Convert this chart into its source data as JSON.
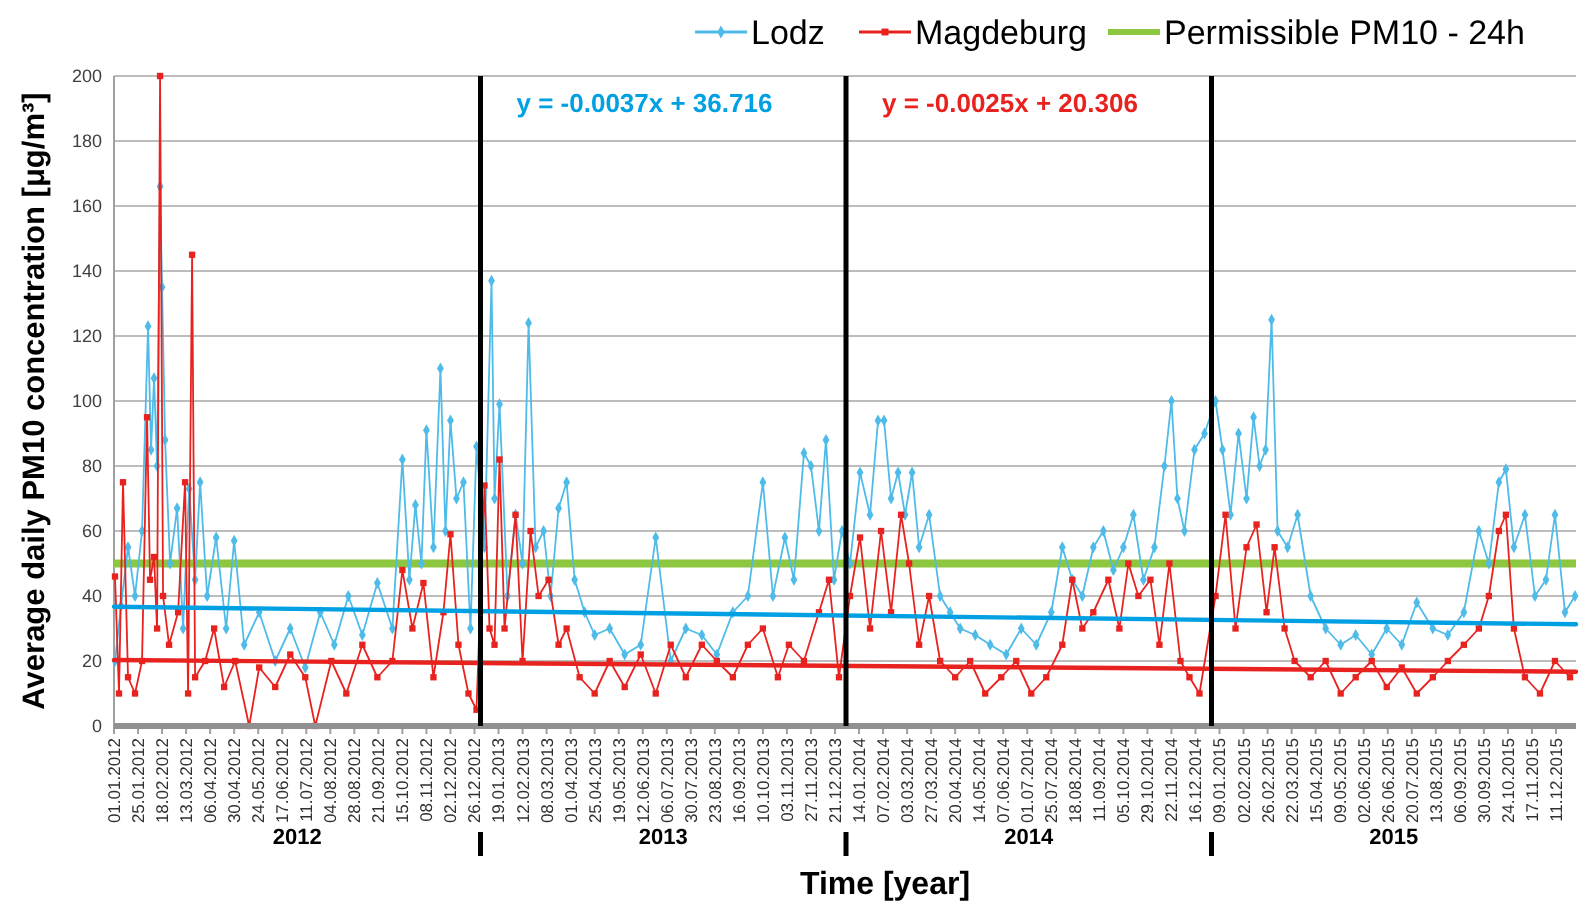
{
  "chart_data": {
    "type": "line",
    "xlabel": "Time [year]",
    "ylabel": "Average daily PM10 concentration [μg/m³]",
    "xlim": [
      "2012-01-01",
      "2015-12-31"
    ],
    "ylim": [
      0,
      200
    ],
    "yticks": [
      0,
      20,
      40,
      60,
      80,
      100,
      120,
      140,
      160,
      180,
      200
    ],
    "xticks": [
      {
        "value": "2012-01-01",
        "label": "01.01.2012"
      },
      {
        "value": "2012-01-25",
        "label": "25.01.2012"
      },
      {
        "value": "2012-02-18",
        "label": "18.02.2012"
      },
      {
        "value": "2012-03-13",
        "label": "13.03.2012"
      },
      {
        "value": "2012-04-06",
        "label": "06.04.2012"
      },
      {
        "value": "2012-04-30",
        "label": "30.04.2012"
      },
      {
        "value": "2012-05-24",
        "label": "24.05.2012"
      },
      {
        "value": "2012-06-17",
        "label": "17.06.2012"
      },
      {
        "value": "2012-07-11",
        "label": "11.07.2012"
      },
      {
        "value": "2012-08-04",
        "label": "04.08.2012"
      },
      {
        "value": "2012-08-28",
        "label": "28.08.2012"
      },
      {
        "value": "2012-09-21",
        "label": "21.09.2012"
      },
      {
        "value": "2012-10-15",
        "label": "15.10.2012"
      },
      {
        "value": "2012-11-08",
        "label": "08.11.2012"
      },
      {
        "value": "2012-12-02",
        "label": "02.12.2012"
      },
      {
        "value": "2012-12-26",
        "label": "26.12.2012"
      },
      {
        "value": "2013-01-19",
        "label": "19.01.2013"
      },
      {
        "value": "2013-02-12",
        "label": "12.02.2013"
      },
      {
        "value": "2013-03-08",
        "label": "08.03.2013"
      },
      {
        "value": "2013-04-01",
        "label": "01.04.2013"
      },
      {
        "value": "2013-04-25",
        "label": "25.04.2013"
      },
      {
        "value": "2013-05-19",
        "label": "19.05.2013"
      },
      {
        "value": "2013-06-12",
        "label": "12.06.2013"
      },
      {
        "value": "2013-07-06",
        "label": "06.07.2013"
      },
      {
        "value": "2013-07-30",
        "label": "30.07.2013"
      },
      {
        "value": "2013-08-23",
        "label": "23.08.2013"
      },
      {
        "value": "2013-09-16",
        "label": "16.09.2013"
      },
      {
        "value": "2013-10-10",
        "label": "10.10.2013"
      },
      {
        "value": "2013-11-03",
        "label": "03.11.2013"
      },
      {
        "value": "2013-11-27",
        "label": "27.11.2013"
      },
      {
        "value": "2013-12-21",
        "label": "21.12.2013"
      },
      {
        "value": "2014-01-14",
        "label": "14.01.2014"
      },
      {
        "value": "2014-02-07",
        "label": "07.02.2014"
      },
      {
        "value": "2014-03-03",
        "label": "03.03.2014"
      },
      {
        "value": "2014-03-27",
        "label": "27.03.2014"
      },
      {
        "value": "2014-04-20",
        "label": "20.04.2014"
      },
      {
        "value": "2014-05-14",
        "label": "14.05.2014"
      },
      {
        "value": "2014-06-07",
        "label": "07.06.2014"
      },
      {
        "value": "2014-07-01",
        "label": "01.07.2014"
      },
      {
        "value": "2014-07-25",
        "label": "25.07.2014"
      },
      {
        "value": "2014-08-18",
        "label": "18.08.2014"
      },
      {
        "value": "2014-09-11",
        "label": "11.09.2014"
      },
      {
        "value": "2014-10-05",
        "label": "05.10.2014"
      },
      {
        "value": "2014-10-29",
        "label": "29.10.2014"
      },
      {
        "value": "2014-11-22",
        "label": "22.11.2014"
      },
      {
        "value": "2014-12-16",
        "label": "16.12.2014"
      },
      {
        "value": "2015-01-09",
        "label": "09.01.2015"
      },
      {
        "value": "2015-02-02",
        "label": "02.02.2015"
      },
      {
        "value": "2015-02-26",
        "label": "26.02.2015"
      },
      {
        "value": "2015-03-22",
        "label": "22.03.2015"
      },
      {
        "value": "2015-04-15",
        "label": "15.04.2015"
      },
      {
        "value": "2015-05-09",
        "label": "09.05.2015"
      },
      {
        "value": "2015-06-02",
        "label": "02.06.2015"
      },
      {
        "value": "2015-06-26",
        "label": "26.06.2015"
      },
      {
        "value": "2015-07-20",
        "label": "20.07.2015"
      },
      {
        "value": "2015-08-13",
        "label": "13.08.2015"
      },
      {
        "value": "2015-09-06",
        "label": "06.09.2015"
      },
      {
        "value": "2015-09-30",
        "label": "30.09.2015"
      },
      {
        "value": "2015-10-24",
        "label": "24.10.2015"
      },
      {
        "value": "2015-11-17",
        "label": "17.11.2015"
      },
      {
        "value": "2015-12-11",
        "label": "11.12.2015"
      }
    ],
    "grid": "y",
    "legend": "top",
    "series": [
      {
        "name": "Lodz",
        "color": "#4fbbe9",
        "marker": "diamond",
        "x": [
          "2012-01-02",
          "2012-01-08",
          "2012-01-15",
          "2012-01-22",
          "2012-01-29",
          "2012-02-04",
          "2012-02-07",
          "2012-02-10",
          "2012-02-13",
          "2012-02-16",
          "2012-02-18",
          "2012-02-21",
          "2012-02-26",
          "2012-03-04",
          "2012-03-10",
          "2012-03-16",
          "2012-03-22",
          "2012-03-27",
          "2012-04-03",
          "2012-04-12",
          "2012-04-22",
          "2012-04-30",
          "2012-05-10",
          "2012-05-25",
          "2012-06-10",
          "2012-06-25",
          "2012-07-10",
          "2012-07-25",
          "2012-08-08",
          "2012-08-22",
          "2012-09-05",
          "2012-09-20",
          "2012-10-05",
          "2012-10-15",
          "2012-10-22",
          "2012-10-28",
          "2012-11-03",
          "2012-11-08",
          "2012-11-15",
          "2012-11-22",
          "2012-11-27",
          "2012-12-02",
          "2012-12-08",
          "2012-12-15",
          "2012-12-22",
          "2012-12-28",
          "2013-01-05",
          "2013-01-12",
          "2013-01-15",
          "2013-01-20",
          "2013-01-28",
          "2013-02-05",
          "2013-02-12",
          "2013-02-18",
          "2013-02-25",
          "2013-03-05",
          "2013-03-12",
          "2013-03-20",
          "2013-03-28",
          "2013-04-05",
          "2013-04-15",
          "2013-04-25",
          "2013-05-10",
          "2013-05-25",
          "2013-06-10",
          "2013-06-25",
          "2013-07-10",
          "2013-07-25",
          "2013-08-10",
          "2013-08-25",
          "2013-09-10",
          "2013-09-25",
          "2013-10-10",
          "2013-10-20",
          "2013-11-01",
          "2013-11-10",
          "2013-11-20",
          "2013-11-27",
          "2013-12-05",
          "2013-12-12",
          "2013-12-20",
          "2013-12-28",
          "2014-01-05",
          "2014-01-15",
          "2014-01-25",
          "2014-02-02",
          "2014-02-08",
          "2014-02-15",
          "2014-02-22",
          "2014-03-01",
          "2014-03-08",
          "2014-03-15",
          "2014-03-25",
          "2014-04-05",
          "2014-04-15",
          "2014-04-25",
          "2014-05-10",
          "2014-05-25",
          "2014-06-10",
          "2014-06-25",
          "2014-07-10",
          "2014-07-25",
          "2014-08-05",
          "2014-08-15",
          "2014-08-25",
          "2014-09-05",
          "2014-09-15",
          "2014-09-25",
          "2014-10-05",
          "2014-10-15",
          "2014-10-25",
          "2014-11-05",
          "2014-11-15",
          "2014-11-22",
          "2014-11-28",
          "2014-12-05",
          "2014-12-15",
          "2014-12-25",
          "2015-01-05",
          "2015-01-12",
          "2015-01-20",
          "2015-01-28",
          "2015-02-05",
          "2015-02-12",
          "2015-02-18",
          "2015-02-24",
          "2015-03-02",
          "2015-03-08",
          "2015-03-18",
          "2015-03-28",
          "2015-04-10",
          "2015-04-25",
          "2015-05-10",
          "2015-05-25",
          "2015-06-10",
          "2015-06-25",
          "2015-07-10",
          "2015-07-25",
          "2015-08-10",
          "2015-08-25",
          "2015-09-10",
          "2015-09-25",
          "2015-10-05",
          "2015-10-15",
          "2015-10-22",
          "2015-10-30",
          "2015-11-10",
          "2015-11-20",
          "2015-12-01",
          "2015-12-10",
          "2015-12-20",
          "2015-12-30"
        ],
        "values": [
          20,
          37,
          55,
          40,
          60,
          123,
          85,
          107,
          80,
          166,
          135,
          88,
          50,
          67,
          30,
          73,
          45,
          75,
          40,
          58,
          30,
          57,
          25,
          35,
          20,
          30,
          18,
          35,
          25,
          40,
          28,
          44,
          30,
          82,
          45,
          68,
          50,
          91,
          55,
          110,
          60,
          94,
          70,
          75,
          30,
          86,
          55,
          137,
          70,
          99,
          40,
          65,
          50,
          124,
          55,
          60,
          40,
          67,
          75,
          45,
          35,
          28,
          30,
          22,
          25,
          58,
          20,
          30,
          28,
          22,
          35,
          40,
          75,
          40,
          58,
          45,
          84,
          80,
          60,
          88,
          45,
          60,
          50,
          78,
          65,
          94,
          94,
          70,
          78,
          65,
          78,
          55,
          65,
          40,
          35,
          30,
          28,
          25,
          22,
          30,
          25,
          35,
          55,
          45,
          40,
          55,
          60,
          48,
          55,
          65,
          45,
          55,
          80,
          100,
          70,
          60,
          85,
          90,
          100,
          85,
          65,
          90,
          70,
          95,
          80,
          85,
          125,
          60,
          55,
          65,
          40,
          30,
          25,
          28,
          22,
          30,
          25,
          38,
          30,
          28,
          35,
          60,
          50,
          75,
          79,
          55,
          65,
          40,
          45,
          65,
          35,
          40
        ]
      },
      {
        "name": "Magdeburg",
        "color": "#e8231f",
        "marker": "square",
        "x": [
          "2012-01-02",
          "2012-01-06",
          "2012-01-10",
          "2012-01-15",
          "2012-01-22",
          "2012-01-29",
          "2012-02-03",
          "2012-02-06",
          "2012-02-10",
          "2012-02-13",
          "2012-02-16",
          "2012-02-19",
          "2012-02-25",
          "2012-03-05",
          "2012-03-12",
          "2012-03-15",
          "2012-03-19",
          "2012-03-22",
          "2012-04-01",
          "2012-04-10",
          "2012-04-20",
          "2012-05-01",
          "2012-05-15",
          "2012-05-25",
          "2012-06-10",
          "2012-06-25",
          "2012-07-10",
          "2012-07-20",
          "2012-08-05",
          "2012-08-20",
          "2012-09-05",
          "2012-09-20",
          "2012-10-05",
          "2012-10-15",
          "2012-10-25",
          "2012-11-05",
          "2012-11-15",
          "2012-11-25",
          "2012-12-02",
          "2012-12-10",
          "2012-12-20",
          "2012-12-28",
          "2013-01-05",
          "2013-01-10",
          "2013-01-15",
          "2013-01-20",
          "2013-01-25",
          "2013-02-05",
          "2013-02-12",
          "2013-02-20",
          "2013-02-28",
          "2013-03-10",
          "2013-03-20",
          "2013-03-28",
          "2013-04-10",
          "2013-04-25",
          "2013-05-10",
          "2013-05-25",
          "2013-06-10",
          "2013-06-25",
          "2013-07-10",
          "2013-07-25",
          "2013-08-10",
          "2013-08-25",
          "2013-09-10",
          "2013-09-25",
          "2013-10-10",
          "2013-10-25",
          "2013-11-05",
          "2013-11-20",
          "2013-12-05",
          "2013-12-15",
          "2013-12-25",
          "2014-01-05",
          "2014-01-15",
          "2014-01-25",
          "2014-02-05",
          "2014-02-15",
          "2014-02-25",
          "2014-03-05",
          "2014-03-15",
          "2014-03-25",
          "2014-04-05",
          "2014-04-20",
          "2014-05-05",
          "2014-05-20",
          "2014-06-05",
          "2014-06-20",
          "2014-07-05",
          "2014-07-20",
          "2014-08-05",
          "2014-08-15",
          "2014-08-25",
          "2014-09-05",
          "2014-09-20",
          "2014-10-01",
          "2014-10-10",
          "2014-10-20",
          "2014-11-01",
          "2014-11-10",
          "2014-11-20",
          "2014-12-01",
          "2014-12-10",
          "2014-12-20",
          "2015-01-05",
          "2015-01-15",
          "2015-01-25",
          "2015-02-05",
          "2015-02-15",
          "2015-02-25",
          "2015-03-05",
          "2015-03-15",
          "2015-03-25",
          "2015-04-10",
          "2015-04-25",
          "2015-05-10",
          "2015-05-25",
          "2015-06-10",
          "2015-06-25",
          "2015-07-10",
          "2015-07-25",
          "2015-08-10",
          "2015-08-25",
          "2015-09-10",
          "2015-09-25",
          "2015-10-05",
          "2015-10-15",
          "2015-10-22",
          "2015-10-30",
          "2015-11-10",
          "2015-11-25",
          "2015-12-10",
          "2015-12-25"
        ],
        "values": [
          46,
          10,
          75,
          15,
          10,
          20,
          95,
          45,
          52,
          30,
          200,
          40,
          25,
          35,
          75,
          10,
          145,
          15,
          20,
          30,
          12,
          20,
          0,
          18,
          12,
          22,
          15,
          0,
          20,
          10,
          25,
          15,
          20,
          48,
          30,
          44,
          15,
          35,
          59,
          25,
          10,
          5,
          74,
          30,
          25,
          82,
          30,
          65,
          20,
          60,
          40,
          45,
          25,
          30,
          15,
          10,
          20,
          12,
          22,
          10,
          25,
          15,
          25,
          20,
          15,
          25,
          30,
          15,
          25,
          20,
          35,
          45,
          15,
          40,
          58,
          30,
          60,
          35,
          65,
          50,
          25,
          40,
          20,
          15,
          20,
          10,
          15,
          20,
          10,
          15,
          25,
          45,
          30,
          35,
          45,
          30,
          50,
          40,
          45,
          25,
          50,
          20,
          15,
          10,
          40,
          65,
          30,
          55,
          62,
          35,
          55,
          30,
          20,
          15,
          20,
          10,
          15,
          20,
          12,
          18,
          10,
          15,
          20,
          25,
          30,
          40,
          60,
          65,
          30,
          15,
          10,
          20,
          15
        ]
      },
      {
        "name": "y = -0.0037x + 36.716",
        "color": "#00a0e3",
        "marker": "none",
        "x": [
          "2012-01-01",
          "2015-12-31"
        ],
        "values": [
          36.7,
          31.3
        ]
      },
      {
        "name": "y = -0.0025x + 20.306",
        "color": "#e8231f",
        "marker": "none",
        "x": [
          "2012-01-01",
          "2015-12-31"
        ],
        "values": [
          20.3,
          16.7
        ]
      }
    ],
    "ref_lines": [
      {
        "axis": "y",
        "value": 50,
        "label": "Permissible PM10 - 24h",
        "color": "#8dc63f"
      },
      {
        "axis": "x",
        "value": "2013-01-01",
        "color": "#000000"
      },
      {
        "axis": "x",
        "value": "2014-01-01",
        "color": "#000000"
      },
      {
        "axis": "x",
        "value": "2015-01-01",
        "color": "#000000"
      }
    ],
    "annotations": [
      "2012",
      "2013",
      "2014",
      "2015"
    ]
  }
}
